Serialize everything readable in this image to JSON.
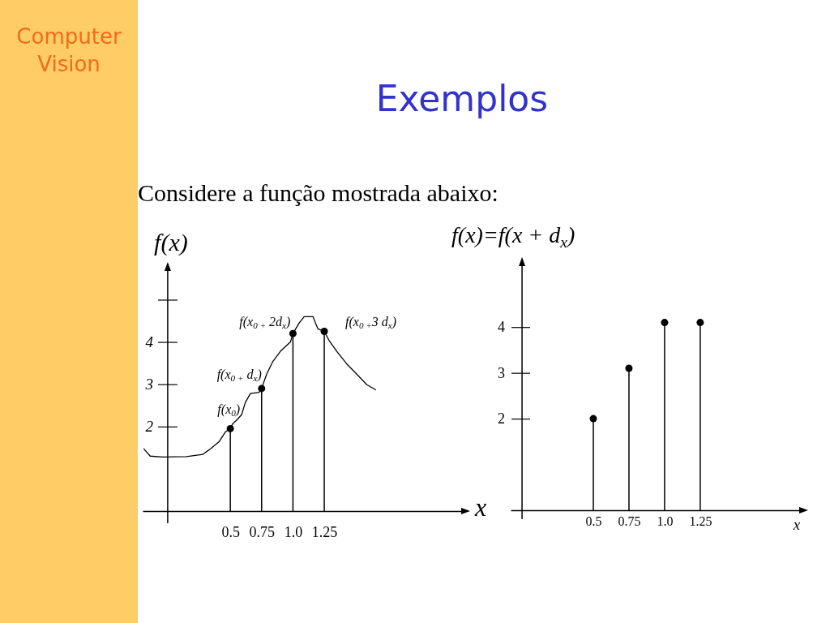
{
  "chart_data": [
    {
      "type": "line",
      "title": "Exemplos",
      "subtitle": "Considere a função mostrada abaixo:",
      "ylabel": "f(x)",
      "xlabel": "x",
      "xlim": [
        -0.2,
        2.35
      ],
      "ylim": [
        0,
        5.7
      ],
      "xticks": [
        0.5,
        0.75,
        {
          "value": 1,
          "label": "1.0"
        },
        1.25
      ],
      "yticks": [
        2,
        3,
        4,
        {
          "value": 5,
          "label": null
        }
      ],
      "series": [
        {
          "color": "#000000",
          "x": [
            -0.19,
            -0.14,
            -0.04,
            0.15,
            0.28,
            0.34,
            0.41,
            0.46,
            0.5,
            0.52,
            0.55,
            0.59,
            0.62,
            0.66,
            0.73,
            0.75,
            0.79,
            0.84,
            0.9,
            0.98,
            1.0,
            1.05,
            1.09,
            1.16,
            1.18,
            1.2,
            1.25,
            1.29,
            1.35,
            1.43,
            1.51,
            1.59,
            1.66
          ],
          "values": [
            1.47,
            1.3,
            1.28,
            1.29,
            1.34,
            1.47,
            1.64,
            1.87,
            1.95,
            2.07,
            2.15,
            2.28,
            2.57,
            2.78,
            2.81,
            2.9,
            3.24,
            3.54,
            3.78,
            4.0,
            4.2,
            4.45,
            4.6,
            4.6,
            4.45,
            4.31,
            4.25,
            4.03,
            3.78,
            3.48,
            3.24,
            2.99,
            2.87
          ]
        },
        {
          "type": "lollipop",
          "color": "#000000",
          "marker": "circle",
          "x": [
            0.5,
            0.75,
            1.0,
            1.25
          ],
          "values": [
            1.95,
            2.9,
            4.2,
            4.25
          ]
        }
      ],
      "annotations": [
        "Computer Vision",
        {
          "text": "f(x$_{0}$)",
          "x": 0.5,
          "y": 1.95
        },
        {
          "text": "f(x$_{0 +}$ d$_{x}$)",
          "x": 0.75,
          "y": 2.9
        },
        {
          "text": "f(x$_{0 +}$ 2d$_{x}$)",
          "x": 1.0,
          "y": 4.2
        },
        {
          "text": "f(x$_{0 +}$3 d$_{x}$)",
          "x": 1.25,
          "y": 4.25
        }
      ]
    },
    {
      "type": "lollipop",
      "ylabel": "f(x)=f(x + d$_{x}$)",
      "xlabel": "x",
      "color": "#000000",
      "marker": "circle",
      "xlim": [
        -0.08,
        1.95
      ],
      "ylim": [
        0,
        5.35
      ],
      "xticks": [
        0.5,
        0.75,
        {
          "value": 1,
          "label": "1.0"
        },
        1.25
      ],
      "yticks": [
        2,
        3,
        4
      ],
      "x": [
        0.5,
        0.75,
        1.0,
        1.25
      ],
      "values": [
        2,
        3.1,
        4.1,
        4.1
      ]
    }
  ]
}
